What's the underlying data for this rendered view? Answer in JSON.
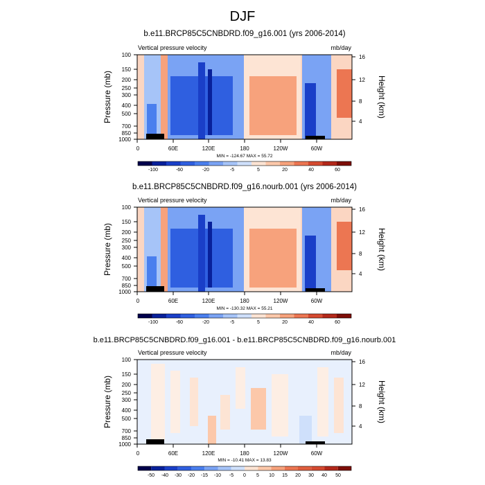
{
  "figure_title": "DJF",
  "colors": {
    "neg": [
      "#00004c",
      "#08209a",
      "#1a3fc8",
      "#2f5fe0",
      "#4a7fee",
      "#7aa3f4",
      "#a6c4f8",
      "#cfe0fb"
    ],
    "pos": [
      "#fde4d4",
      "#fcc8aa",
      "#f7a27c",
      "#ec7652",
      "#d54a30",
      "#b3281a",
      "#7e0e08"
    ]
  },
  "chart_data": [
    {
      "type": "heatmap",
      "title": "b.e11.BRCP85C5CNBDRD.f09_g16.001 (yrs 2006-2014)",
      "subtitle_left": "Vertical pressure velocity",
      "subtitle_right": "mb/day",
      "ylabel": "Pressure (mb)",
      "ylabel_right": "Height (km)",
      "y_ticks": [
        "100",
        "150",
        "200",
        "250",
        "300",
        "400",
        "500",
        "700",
        "850",
        "1000"
      ],
      "y_right_ticks": [
        "16",
        "12",
        "8",
        "4"
      ],
      "x_ticks": [
        "0",
        "60E",
        "120E",
        "180",
        "120W",
        "60W"
      ],
      "stats": "MIN = -124.67  MAX = 55.72",
      "colorbar_labels": [
        "-100",
        "-60",
        "-20",
        "-5",
        "5",
        "20",
        "40",
        "60"
      ],
      "field_regions": [
        {
          "lon": [
            0,
            10
          ],
          "omega": 10
        },
        {
          "lon": [
            10,
            35
          ],
          "omega": -30
        },
        {
          "lon": [
            35,
            45
          ],
          "omega": 15
        },
        {
          "lon": [
            45,
            75
          ],
          "omega": -40
        },
        {
          "lon": [
            75,
            110
          ],
          "omega": -60
        },
        {
          "lon": [
            110,
            150
          ],
          "omega": -40
        },
        {
          "lon": [
            150,
            175
          ],
          "omega": -10
        },
        {
          "lon": [
            175,
            235
          ],
          "omega": 20
        },
        {
          "lon": [
            235,
            280
          ],
          "omega": 5
        },
        {
          "lon": [
            280,
            305
          ],
          "omega": -60
        },
        {
          "lon": [
            305,
            335
          ],
          "omega": -20
        },
        {
          "lon": [
            335,
            360
          ],
          "omega": 20
        }
      ]
    },
    {
      "type": "heatmap",
      "title": "b.e11.BRCP85C5CNBDRD.f09_g16.nourb.001 (yrs 2006-2014)",
      "subtitle_left": "Vertical pressure velocity",
      "subtitle_right": "mb/day",
      "ylabel": "Pressure (mb)",
      "ylabel_right": "Height (km)",
      "y_ticks": [
        "100",
        "150",
        "200",
        "250",
        "300",
        "400",
        "500",
        "700",
        "850",
        "1000"
      ],
      "y_right_ticks": [
        "16",
        "12",
        "8",
        "4"
      ],
      "x_ticks": [
        "0",
        "60E",
        "120E",
        "180",
        "120W",
        "60W"
      ],
      "stats": "MIN = -130.32  MAX = 55.21",
      "colorbar_labels": [
        "-100",
        "-60",
        "-20",
        "-5",
        "5",
        "20",
        "40",
        "60"
      ],
      "field_regions": [
        {
          "lon": [
            0,
            10
          ],
          "omega": 10
        },
        {
          "lon": [
            10,
            35
          ],
          "omega": -30
        },
        {
          "lon": [
            35,
            45
          ],
          "omega": 15
        },
        {
          "lon": [
            45,
            75
          ],
          "omega": -40
        },
        {
          "lon": [
            75,
            110
          ],
          "omega": -60
        },
        {
          "lon": [
            110,
            150
          ],
          "omega": -40
        },
        {
          "lon": [
            150,
            175
          ],
          "omega": -10
        },
        {
          "lon": [
            175,
            235
          ],
          "omega": 20
        },
        {
          "lon": [
            235,
            280
          ],
          "omega": 5
        },
        {
          "lon": [
            280,
            305
          ],
          "omega": -60
        },
        {
          "lon": [
            305,
            335
          ],
          "omega": -20
        },
        {
          "lon": [
            335,
            360
          ],
          "omega": 15
        }
      ]
    },
    {
      "type": "heatmap",
      "title": "b.e11.BRCP85C5CNBDRD.f09_g16.001 - b.e11.BRCP85C5CNBDRD.f09_g16.nourb.001",
      "subtitle_left": "Vertical pressure velocity",
      "subtitle_right": "mb/day",
      "ylabel": "Pressure (mb)",
      "ylabel_right": "Height (km)",
      "y_ticks": [
        "100",
        "150",
        "200",
        "250",
        "300",
        "400",
        "500",
        "700",
        "850",
        "1000"
      ],
      "y_right_ticks": [
        "16",
        "12",
        "8",
        "4"
      ],
      "x_ticks": [
        "0",
        "60E",
        "120E",
        "180",
        "120W",
        "60W"
      ],
      "stats": "MIN = -10.41  MAX = 13.83",
      "colorbar_labels": [
        "-50",
        "-40",
        "-30",
        "-20",
        "-15",
        "-10",
        "-5",
        "0",
        "5",
        "10",
        "15",
        "20",
        "30",
        "40",
        "50"
      ],
      "field_regions": [
        {
          "lon": [
            0,
            40
          ],
          "omega": -2
        },
        {
          "lon": [
            40,
            80
          ],
          "omega": 2
        },
        {
          "lon": [
            80,
            100
          ],
          "omega": -3
        },
        {
          "lon": [
            100,
            130
          ],
          "omega": 3
        },
        {
          "lon": [
            130,
            160
          ],
          "omega": -2
        },
        {
          "lon": [
            160,
            200
          ],
          "omega": 4
        },
        {
          "lon": [
            200,
            240
          ],
          "omega": 2
        },
        {
          "lon": [
            240,
            280
          ],
          "omega": -2
        },
        {
          "lon": [
            280,
            320
          ],
          "omega": 2
        },
        {
          "lon": [
            320,
            360
          ],
          "omega": -2
        }
      ]
    }
  ]
}
